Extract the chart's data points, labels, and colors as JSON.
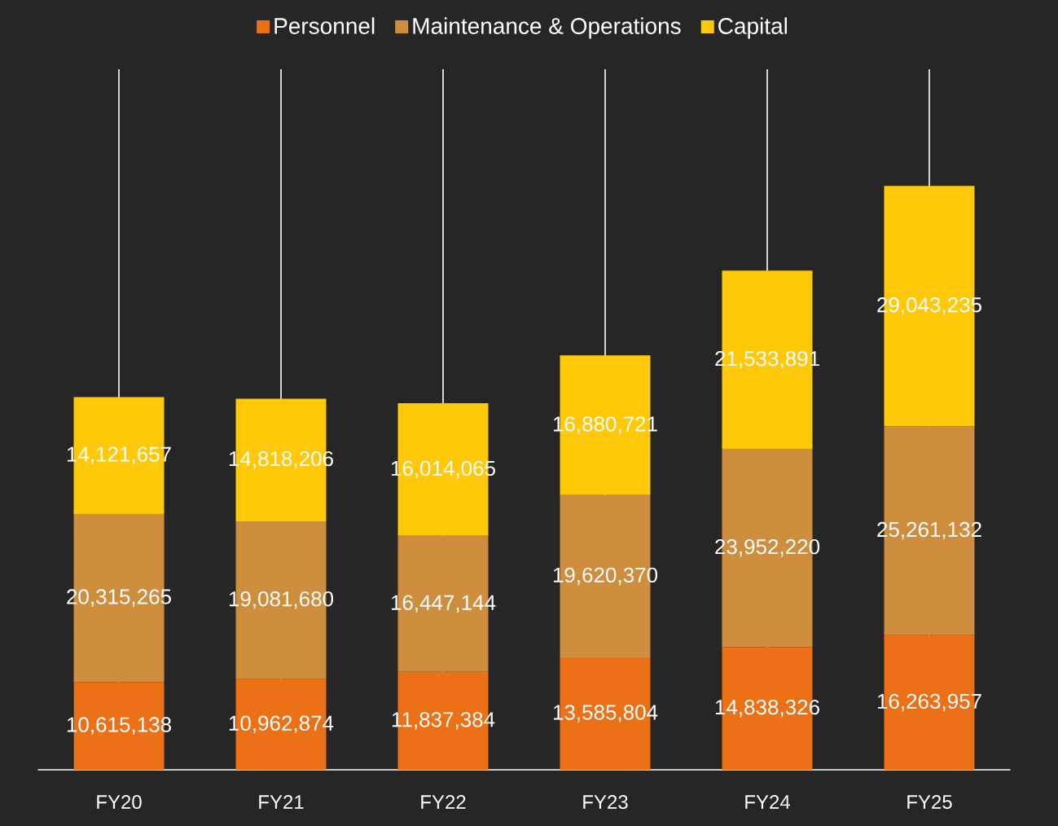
{
  "chart_data": {
    "type": "bar",
    "stacked": true,
    "legend": "top",
    "grid": "x",
    "tick_labels": "x",
    "categories": [
      "FY20",
      "FY21",
      "FY22",
      "FY23",
      "FY24",
      "FY25"
    ],
    "series": [
      {
        "name": "Personnel",
        "color": "#ec7016",
        "values": [
          10615138,
          10962874,
          11837384,
          13585804,
          14838326,
          16263957
        ],
        "value_labels": [
          "10,615,138",
          "10,962,874",
          "11,837,384",
          "13,585,804",
          "14,838,326",
          "16,263,957"
        ]
      },
      {
        "name": "Maintenance & Operations",
        "color": "#cf8d3e",
        "values": [
          20315265,
          19081680,
          16447144,
          19620370,
          23952220,
          25261132
        ],
        "value_labels": [
          "20,315,265",
          "19,081,680",
          "16,447,144",
          "19,620,370",
          "23,952,220",
          "25,261,132"
        ]
      },
      {
        "name": "Capital",
        "color": "#ffc808",
        "values": [
          14121657,
          14818206,
          16014065,
          16880721,
          21533891,
          29043235
        ],
        "value_labels": [
          "14,121,657",
          "14,818,206",
          "16,014,065",
          "16,880,721",
          "21,533,891",
          "29,043,235"
        ]
      }
    ]
  }
}
